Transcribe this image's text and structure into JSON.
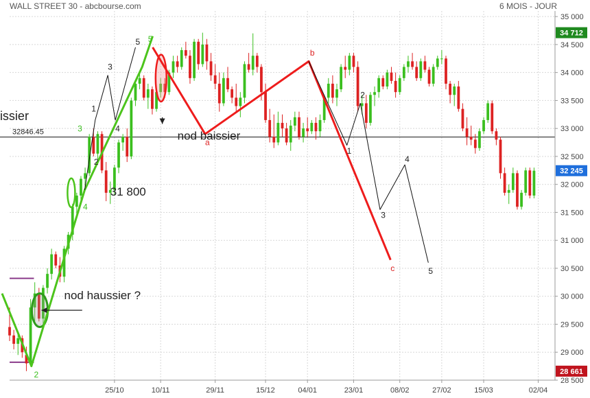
{
  "header": {
    "title": "WALL STREET 30 - abcbourse.com",
    "period": "6 MOIS - JOUR"
  },
  "colors": {
    "up": "#3bbf1f",
    "down": "#dd2222",
    "trend_green": "#4cc41c",
    "trend_red": "#ee1c1c",
    "last_price_bg": "#1f6fdc",
    "high_bg": "#1f8a1f",
    "low_bg": "#c0141e",
    "level_line": "#8a3a8a",
    "grid": "#d7d7d7"
  },
  "chart_data": {
    "type": "candlestick",
    "ylim": [
      28500,
      35100
    ],
    "y_ticks": [
      28500,
      29000,
      29500,
      30000,
      30500,
      31000,
      31500,
      32000,
      32500,
      33000,
      33500,
      34000,
      34500,
      35000
    ],
    "y_tick_labels": [
      "28 500",
      "29 000",
      "29 500",
      "30 000",
      "30 500",
      "31 000",
      "31 500",
      "32 000",
      "32 500",
      "33 000",
      "33 500",
      "34 000",
      "34 500",
      "35 000"
    ],
    "x_ticks": [
      25,
      36,
      49,
      61,
      71,
      82,
      93,
      103,
      113,
      126
    ],
    "x_tick_labels": [
      "25/10",
      "10/11",
      "29/11",
      "15/12",
      "04/01",
      "23/01",
      "08/02",
      "27/02",
      "15/03",
      "02/04"
    ],
    "x_range": [
      0,
      130
    ],
    "price_labels": [
      {
        "text": "34 712",
        "value": 34712,
        "kind": "high"
      },
      {
        "text": "32 245",
        "value": 32245,
        "kind": "last"
      },
      {
        "text": "28 661",
        "value": 28661,
        "kind": "low"
      }
    ],
    "candles": [
      [
        0,
        29450,
        29800,
        29200,
        29300
      ],
      [
        1,
        29300,
        29400,
        29050,
        29150
      ],
      [
        2,
        29150,
        29350,
        28950,
        29250
      ],
      [
        3,
        29250,
        29300,
        28900,
        29000
      ],
      [
        4,
        28950,
        29100,
        28661,
        28800
      ],
      [
        5,
        28800,
        29950,
        28750,
        29800
      ],
      [
        6,
        29800,
        30250,
        29500,
        30050
      ],
      [
        7,
        30050,
        30150,
        29550,
        29600
      ],
      [
        8,
        29600,
        30200,
        29450,
        30150
      ],
      [
        9,
        30150,
        30500,
        30050,
        30400
      ],
      [
        10,
        30400,
        30850,
        30300,
        30750
      ],
      [
        11,
        30750,
        30800,
        30500,
        30550
      ],
      [
        12,
        30550,
        30700,
        30250,
        30350
      ],
      [
        13,
        30350,
        30900,
        30250,
        30850
      ],
      [
        14,
        30850,
        31150,
        30750,
        31100
      ],
      [
        15,
        31100,
        31650,
        31000,
        31600
      ],
      [
        16,
        31600,
        31850,
        31450,
        31800
      ],
      [
        17,
        31800,
        32150,
        31700,
        32100
      ],
      [
        18,
        32100,
        32300,
        31950,
        32200
      ],
      [
        19,
        32200,
        32900,
        32150,
        32850
      ],
      [
        20,
        32850,
        33000,
        32500,
        32550
      ],
      [
        21,
        32550,
        32950,
        32450,
        32900
      ],
      [
        22,
        32900,
        32950,
        32200,
        32250
      ],
      [
        23,
        32250,
        32400,
        31700,
        31850
      ],
      [
        24,
        31850,
        32050,
        31650,
        31900
      ],
      [
        25,
        31900,
        32350,
        31800,
        32300
      ],
      [
        26,
        32300,
        32800,
        32200,
        32750
      ],
      [
        27,
        32750,
        32900,
        32600,
        32850
      ],
      [
        28,
        32850,
        33000,
        32400,
        32500
      ],
      [
        29,
        32500,
        33550,
        32450,
        33500
      ],
      [
        30,
        33500,
        33850,
        33400,
        33800
      ],
      [
        31,
        33800,
        34000,
        33700,
        33900
      ],
      [
        32,
        33900,
        33950,
        33500,
        33550
      ],
      [
        33,
        33550,
        33800,
        33350,
        33700
      ],
      [
        34,
        33700,
        33750,
        33250,
        33350
      ],
      [
        35,
        33350,
        33700,
        33300,
        33650
      ],
      [
        36,
        33650,
        33900,
        33550,
        33800
      ],
      [
        37,
        33800,
        33900,
        33550,
        33650
      ],
      [
        38,
        33650,
        34050,
        33600,
        34000
      ],
      [
        39,
        34000,
        34300,
        33900,
        34200
      ],
      [
        40,
        34200,
        34300,
        34000,
        34100
      ],
      [
        41,
        34100,
        34450,
        34050,
        34400
      ],
      [
        42,
        34400,
        34550,
        34250,
        34300
      ],
      [
        43,
        34300,
        34400,
        33800,
        33900
      ],
      [
        44,
        33900,
        34600,
        33850,
        34550
      ],
      [
        45,
        34550,
        34600,
        34050,
        34150
      ],
      [
        46,
        34150,
        34712,
        34100,
        34500
      ],
      [
        47,
        34500,
        34600,
        34050,
        34200
      ],
      [
        48,
        34200,
        34350,
        33850,
        33950
      ],
      [
        49,
        33950,
        34150,
        33700,
        33800
      ],
      [
        50,
        33800,
        34000,
        33300,
        33450
      ],
      [
        51,
        33450,
        34000,
        33400,
        33900
      ],
      [
        52,
        33900,
        34100,
        33650,
        33700
      ],
      [
        53,
        33700,
        33750,
        33450,
        33550
      ],
      [
        54,
        33550,
        33800,
        33300,
        33400
      ],
      [
        55,
        33400,
        33650,
        33200,
        33550
      ],
      [
        56,
        33550,
        34200,
        33450,
        34150
      ],
      [
        57,
        34150,
        34350,
        34000,
        34050
      ],
      [
        58,
        34050,
        34700,
        33950,
        34300
      ],
      [
        59,
        34300,
        34350,
        34000,
        34100
      ],
      [
        60,
        34100,
        34150,
        33500,
        33650
      ],
      [
        61,
        33650,
        33800,
        33100,
        33150
      ],
      [
        62,
        33150,
        33350,
        32750,
        32850
      ],
      [
        63,
        32850,
        33250,
        32650,
        32750
      ],
      [
        64,
        32750,
        33300,
        32700,
        33100
      ],
      [
        65,
        33100,
        33250,
        32850,
        33000
      ],
      [
        66,
        33000,
        33100,
        32700,
        32750
      ],
      [
        67,
        32750,
        33150,
        32600,
        33050
      ],
      [
        68,
        33050,
        33300,
        32950,
        33200
      ],
      [
        69,
        33200,
        33300,
        32800,
        32850
      ],
      [
        70,
        32850,
        33100,
        32750,
        33000
      ],
      [
        71,
        33000,
        33200,
        32850,
        32950
      ],
      [
        72,
        32950,
        33150,
        32900,
        33100
      ],
      [
        73,
        33100,
        33200,
        32800,
        32950
      ],
      [
        74,
        32950,
        33250,
        32850,
        33150
      ],
      [
        75,
        33150,
        33600,
        33100,
        33550
      ],
      [
        76,
        33550,
        33900,
        33450,
        33800
      ],
      [
        77,
        33800,
        33950,
        33450,
        33550
      ],
      [
        78,
        33550,
        33800,
        33400,
        33700
      ],
      [
        79,
        33700,
        34150,
        33650,
        34100
      ],
      [
        80,
        34100,
        34300,
        33900,
        34050
      ],
      [
        81,
        34050,
        34350,
        33950,
        34300
      ],
      [
        82,
        34300,
        34350,
        34000,
        34100
      ],
      [
        83,
        34100,
        34200,
        33300,
        33400
      ],
      [
        84,
        33400,
        33600,
        33250,
        33450
      ],
      [
        85,
        33450,
        33600,
        33000,
        33100
      ],
      [
        86,
        33100,
        33650,
        33050,
        33600
      ],
      [
        87,
        33600,
        33750,
        33400,
        33650
      ],
      [
        88,
        33650,
        33950,
        33550,
        33900
      ],
      [
        89,
        33900,
        33950,
        33700,
        33750
      ],
      [
        90,
        33750,
        34050,
        33700,
        34000
      ],
      [
        91,
        34000,
        34100,
        33800,
        33850
      ],
      [
        92,
        33850,
        34000,
        33550,
        33650
      ],
      [
        93,
        33650,
        33950,
        33600,
        33900
      ],
      [
        94,
        33900,
        34150,
        33850,
        34100
      ],
      [
        95,
        34100,
        34300,
        34000,
        34200
      ],
      [
        96,
        34200,
        34350,
        34050,
        34100
      ],
      [
        97,
        34100,
        34200,
        33850,
        33900
      ],
      [
        98,
        33900,
        34250,
        33850,
        34200
      ],
      [
        99,
        34200,
        34300,
        34000,
        34050
      ],
      [
        100,
        34050,
        34100,
        33750,
        33800
      ],
      [
        101,
        33800,
        34150,
        33750,
        34100
      ],
      [
        102,
        34100,
        34300,
        34050,
        34250
      ],
      [
        103,
        34250,
        34400,
        34150,
        34250
      ],
      [
        104,
        34250,
        34300,
        33700,
        33800
      ],
      [
        105,
        33800,
        33850,
        33450,
        33600
      ],
      [
        106,
        33600,
        33800,
        33400,
        33750
      ],
      [
        107,
        33750,
        33850,
        33300,
        33350
      ],
      [
        108,
        33350,
        33450,
        32950,
        33000
      ],
      [
        109,
        33000,
        33200,
        32700,
        32850
      ],
      [
        110,
        32850,
        33050,
        32700,
        32800
      ],
      [
        111,
        32800,
        32900,
        32550,
        32650
      ],
      [
        112,
        32650,
        33000,
        32600,
        32950
      ],
      [
        113,
        32950,
        33200,
        32900,
        33150
      ],
      [
        114,
        33150,
        33500,
        33100,
        33450
      ],
      [
        115,
        33450,
        33500,
        32900,
        32950
      ],
      [
        116,
        32950,
        33000,
        32700,
        32800
      ],
      [
        117,
        32800,
        32850,
        32100,
        32200
      ],
      [
        118,
        32200,
        32300,
        31800,
        31850
      ],
      [
        119,
        31850,
        32000,
        31650,
        31900
      ],
      [
        120,
        31900,
        32300,
        31850,
        32200
      ],
      [
        121,
        32200,
        32250,
        31550,
        31600
      ],
      [
        122,
        31600,
        31900,
        31550,
        31850
      ],
      [
        123,
        31850,
        32300,
        31800,
        32250
      ],
      [
        124,
        32250,
        32300,
        31750,
        31800
      ],
      [
        125,
        31800,
        32300,
        31750,
        32245
      ]
    ],
    "levels": [
      {
        "value": 32846.45,
        "label": "32846.45",
        "kind": "reference"
      },
      {
        "value": 30320,
        "kind": "purple"
      },
      {
        "value": 28820,
        "kind": "purple"
      }
    ],
    "annotations": [
      {
        "text": "nod haussier ?",
        "x": 13,
        "y": 29950,
        "color": "#222222",
        "size": 17
      },
      {
        "text": "nod baissier",
        "x": 40,
        "y": 32800,
        "color": "#222222",
        "size": 17
      },
      {
        "text": "31 800",
        "x": 24,
        "y": 31800,
        "color": "#222222",
        "size": 17
      },
      {
        "text": "issier",
        "x": -2.3,
        "y": 33150,
        "color": "#222222",
        "size": 18
      },
      {
        "text": "1",
        "x": 19.5,
        "y": 33300,
        "color": "#222222",
        "size": 12
      },
      {
        "text": "2",
        "x": 20.1,
        "y": 32350,
        "color": "#222222",
        "size": 12
      },
      {
        "text": "3",
        "x": 23.4,
        "y": 34050,
        "color": "#222222",
        "size": 12
      },
      {
        "text": "4",
        "x": 25.2,
        "y": 32950,
        "color": "#222222",
        "size": 12
      },
      {
        "text": "5",
        "x": 30,
        "y": 34500,
        "color": "#222222",
        "size": 12
      },
      {
        "text": "3",
        "x": 16.2,
        "y": 32950,
        "color": "#3bbf1f",
        "size": 12
      },
      {
        "text": "4",
        "x": 17.5,
        "y": 31550,
        "color": "#3bbf1f",
        "size": 12
      },
      {
        "text": "5",
        "x": 33,
        "y": 34550,
        "color": "#3bbf1f",
        "size": 12
      },
      {
        "text": "2",
        "x": 5.8,
        "y": 28550,
        "color": "#3bbf1f",
        "size": 12
      },
      {
        "text": "a",
        "x": 46.6,
        "y": 32700,
        "color": "#dd2222",
        "size": 12
      },
      {
        "text": "b",
        "x": 71.6,
        "y": 34300,
        "color": "#dd2222",
        "size": 12
      },
      {
        "text": "c",
        "x": 90.8,
        "y": 30450,
        "color": "#dd2222",
        "size": 12
      },
      {
        "text": "1",
        "x": 80.4,
        "y": 32550,
        "color": "#222222",
        "size": 12
      },
      {
        "text": "2",
        "x": 83.6,
        "y": 33550,
        "color": "#222222",
        "size": 12
      },
      {
        "text": "3",
        "x": 88.5,
        "y": 31400,
        "color": "#222222",
        "size": 12
      },
      {
        "text": "4",
        "x": 94.2,
        "y": 32400,
        "color": "#222222",
        "size": 12
      },
      {
        "text": "5",
        "x": 99.8,
        "y": 30400,
        "color": "#222222",
        "size": 12
      }
    ],
    "trend_lines": [
      {
        "color": "#4cc41c",
        "width": 3,
        "points": [
          [
            -1.8,
            30050
          ],
          [
            5.2,
            28750
          ],
          [
            17.9,
            31900
          ],
          [
            31.6,
            34100
          ],
          [
            34.1,
            34650
          ]
        ]
      },
      {
        "color": "#ee1c1c",
        "width": 3,
        "points": [
          [
            34.1,
            34450
          ],
          [
            46.6,
            32900
          ],
          [
            71.3,
            34200
          ],
          [
            90.8,
            30650
          ]
        ]
      },
      {
        "color": "#111111",
        "width": 1,
        "points": [
          [
            17.9,
            31900
          ],
          [
            20.4,
            33150
          ],
          [
            23.4,
            33950
          ],
          [
            25.2,
            33150
          ],
          [
            30,
            34450
          ]
        ]
      },
      {
        "color": "#111111",
        "width": 1,
        "points": [
          [
            71.3,
            34200
          ],
          [
            80.4,
            32700
          ],
          [
            83.6,
            33450
          ],
          [
            88.3,
            31550
          ],
          [
            94.2,
            32350
          ],
          [
            99.8,
            30600
          ]
        ]
      }
    ],
    "ellipses": [
      {
        "cx": 7.2,
        "cy": 29750,
        "rx": 1.9,
        "ry": 300,
        "stroke": "#2e9a1c",
        "fill": "rgba(150,150,150,0.28)",
        "width": 3
      },
      {
        "cx": 14.7,
        "cy": 31850,
        "rx": 0.9,
        "ry": 260,
        "stroke": "#4cc41c",
        "fill": "none",
        "width": 2.5
      },
      {
        "cx": 36.1,
        "cy": 33900,
        "rx": 1.3,
        "ry": 420,
        "stroke": "#ee1c1c",
        "fill": "rgba(240,150,150,0.35)",
        "width": 2.5
      }
    ],
    "arrows": [
      {
        "x1": 17.3,
        "y1": 29750,
        "x2": 7.6,
        "y2": 29750,
        "color": "#222222"
      },
      {
        "x1": 36.4,
        "y1": 33200,
        "x2": 36.4,
        "y2": 33080,
        "color": "#222222"
      }
    ]
  }
}
